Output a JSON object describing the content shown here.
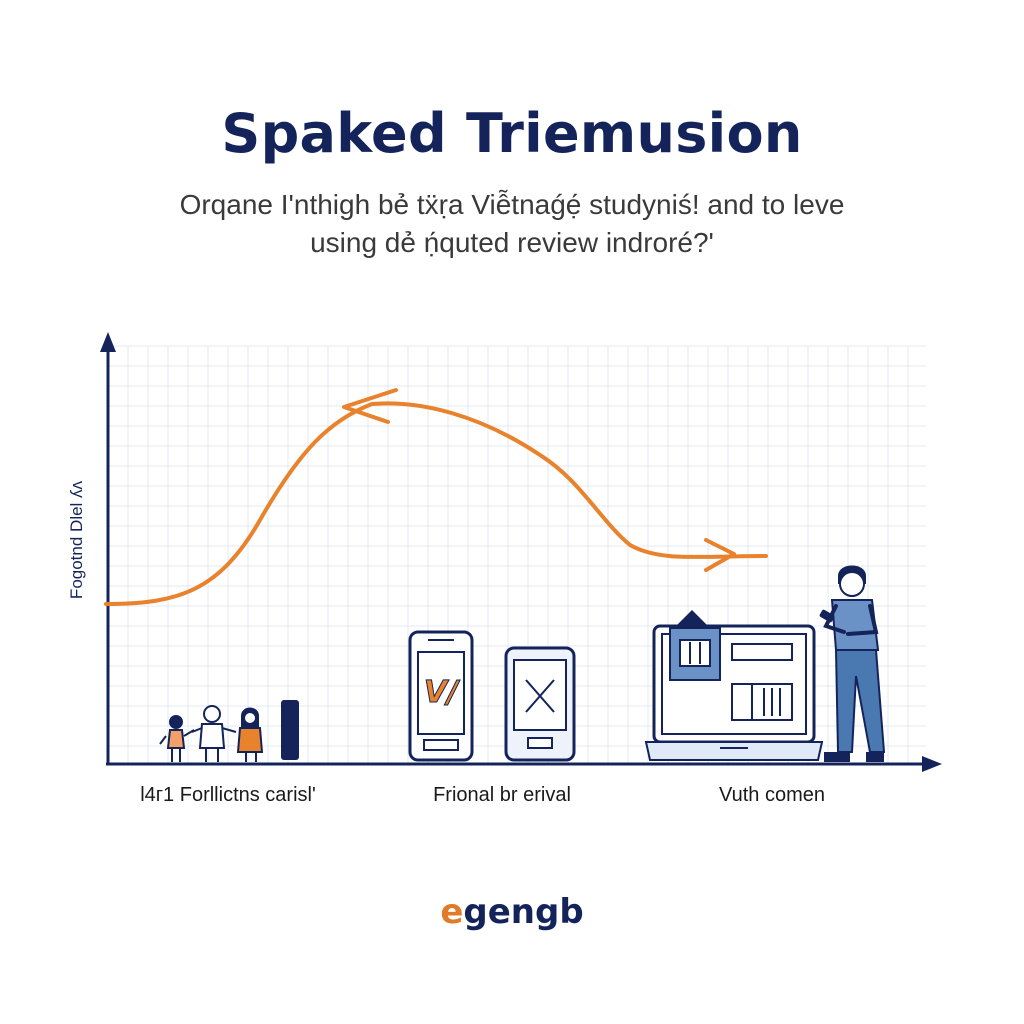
{
  "header": {
    "title": "Spaked Triemusion",
    "subtitle_line1": "Orqane I'nthigh bẻ tẍ̈ṛa Viễtnaǵẹ́ studyniś! and to leve",
    "subtitle_line2": "using dẻ ṇ́quted review indroré?'"
  },
  "axis": {
    "y_label": "Fogotnd Dlel ʎʌ"
  },
  "stages": [
    {
      "label": "l4ᴦ1 Forllictns carisl'",
      "icon": "family-figures-icon"
    },
    {
      "label": "Frional br erival",
      "icon": "smartphone-icon"
    },
    {
      "label": "Vuth comen",
      "icon": "laptop-person-icon"
    }
  ],
  "phone_screen_text": "V/",
  "colors": {
    "navy": "#14245a",
    "orange": "#e8822c",
    "grid": "#e3e8f2",
    "blue": "#4a78b0"
  },
  "logo": {
    "prefix": "e",
    "rest": "gengb"
  }
}
